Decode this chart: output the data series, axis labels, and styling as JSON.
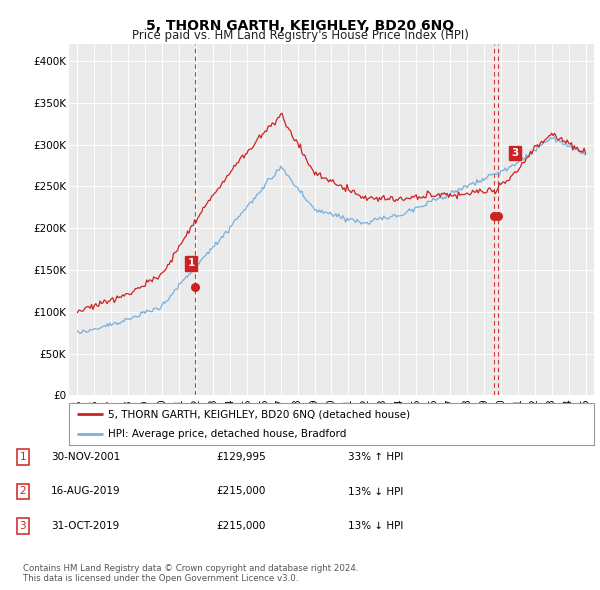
{
  "title": "5, THORN GARTH, KEIGHLEY, BD20 6NQ",
  "subtitle": "Price paid vs. HM Land Registry's House Price Index (HPI)",
  "title_fontsize": 10,
  "subtitle_fontsize": 8.5,
  "ylim": [
    0,
    420000
  ],
  "yticks": [
    0,
    50000,
    100000,
    150000,
    200000,
    250000,
    300000,
    350000,
    400000
  ],
  "ytick_labels": [
    "£0",
    "£50K",
    "£100K",
    "£150K",
    "£200K",
    "£250K",
    "£300K",
    "£350K",
    "£400K"
  ],
  "hpi_color": "#7aafdc",
  "price_color": "#cc2222",
  "vline_color": "#cc2222",
  "marker_color": "#cc2222",
  "sale1_date": 2001.92,
  "sale1_price": 129995,
  "sale2_date": 2019.62,
  "sale2_price": 215000,
  "sale3_date": 2019.83,
  "sale3_price": 215000,
  "legend_line1": "5, THORN GARTH, KEIGHLEY, BD20 6NQ (detached house)",
  "legend_line2": "HPI: Average price, detached house, Bradford",
  "table_rows": [
    {
      "num": "1",
      "date": "30-NOV-2001",
      "price": "£129,995",
      "hpi": "33% ↑ HPI"
    },
    {
      "num": "2",
      "date": "16-AUG-2019",
      "price": "£215,000",
      "hpi": "13% ↓ HPI"
    },
    {
      "num": "3",
      "date": "31-OCT-2019",
      "price": "£215,000",
      "hpi": "13% ↓ HPI"
    }
  ],
  "footnote": "Contains HM Land Registry data © Crown copyright and database right 2024.\nThis data is licensed under the Open Government Licence v3.0.",
  "bg_color": "#ffffff",
  "plot_bg_color": "#ebebeb"
}
